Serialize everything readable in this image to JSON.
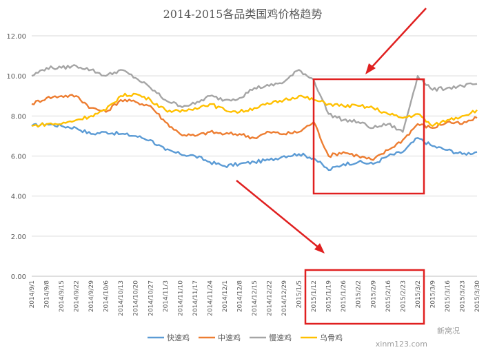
{
  "chart_data": {
    "type": "line",
    "title": "2014-2015各品类国鸡价格趋势",
    "xlabel": "",
    "ylabel": "",
    "ylim": [
      0,
      12
    ],
    "yticks": [
      "0.00",
      "2.00",
      "4.00",
      "6.00",
      "8.00",
      "10.00",
      "12.00"
    ],
    "grid": true,
    "legend_position": "bottom",
    "categories": [
      "2014/9/1",
      "2014/9/8",
      "2014/9/15",
      "2014/9/22",
      "2014/9/29",
      "2014/10/6",
      "2014/10/13",
      "2014/10/20",
      "2014/10/27",
      "2014/11/3",
      "2014/11/10",
      "2014/11/17",
      "2014/11/24",
      "2014/12/1",
      "2014/12/8",
      "2014/12/15",
      "2014/12/22",
      "2014/12/29",
      "2015/1/5",
      "2015/1/12",
      "2015/1/19",
      "2015/1/26",
      "2015/2/2",
      "2015/2/9",
      "2015/2/16",
      "2015/2/23",
      "2015/3/2",
      "2015/3/9",
      "2015/3/16",
      "2015/3/23",
      "2015/3/30"
    ],
    "series": [
      {
        "name": "快速鸡",
        "color": "#5B9BD5",
        "values": [
          7.5,
          7.6,
          7.5,
          7.4,
          7.1,
          7.2,
          7.1,
          7.0,
          6.8,
          6.3,
          6.1,
          6.0,
          5.7,
          5.5,
          5.6,
          5.7,
          5.8,
          6.0,
          6.1,
          5.9,
          5.3,
          5.6,
          5.7,
          5.6,
          6.0,
          6.2,
          6.9,
          6.5,
          6.3,
          6.1,
          6.2
        ]
      },
      {
        "name": "中速鸡",
        "color": "#ED7D31",
        "values": [
          8.6,
          8.9,
          9.0,
          9.0,
          8.4,
          8.2,
          8.8,
          8.7,
          8.5,
          7.7,
          7.1,
          7.0,
          7.2,
          7.1,
          7.1,
          6.9,
          7.2,
          7.1,
          7.2,
          7.7,
          6.0,
          6.2,
          6.0,
          5.8,
          6.3,
          6.8,
          7.6,
          7.4,
          7.7,
          7.6,
          7.9
        ]
      },
      {
        "name": "慢速鸡",
        "color": "#A5A5A5",
        "values": [
          10.0,
          10.4,
          10.4,
          10.5,
          10.3,
          10.0,
          10.3,
          9.9,
          9.4,
          8.8,
          8.5,
          8.6,
          9.0,
          8.8,
          8.9,
          9.4,
          9.5,
          9.7,
          10.3,
          9.8,
          8.1,
          7.8,
          7.7,
          7.4,
          7.6,
          7.2,
          10.0,
          9.3,
          9.4,
          9.5,
          9.6
        ]
      },
      {
        "name": "乌骨鸡",
        "color": "#FFC000",
        "values": [
          7.5,
          7.6,
          7.6,
          7.8,
          8.0,
          8.3,
          9.0,
          9.1,
          8.8,
          8.3,
          8.2,
          8.4,
          8.6,
          8.3,
          8.2,
          8.4,
          8.6,
          8.8,
          9.0,
          8.8,
          8.6,
          8.5,
          8.5,
          8.4,
          8.1,
          7.9,
          8.1,
          7.5,
          7.8,
          8.0,
          8.3
        ]
      }
    ]
  },
  "watermark": {
    "brand": "新窝况",
    "url": "xinm123.com"
  }
}
